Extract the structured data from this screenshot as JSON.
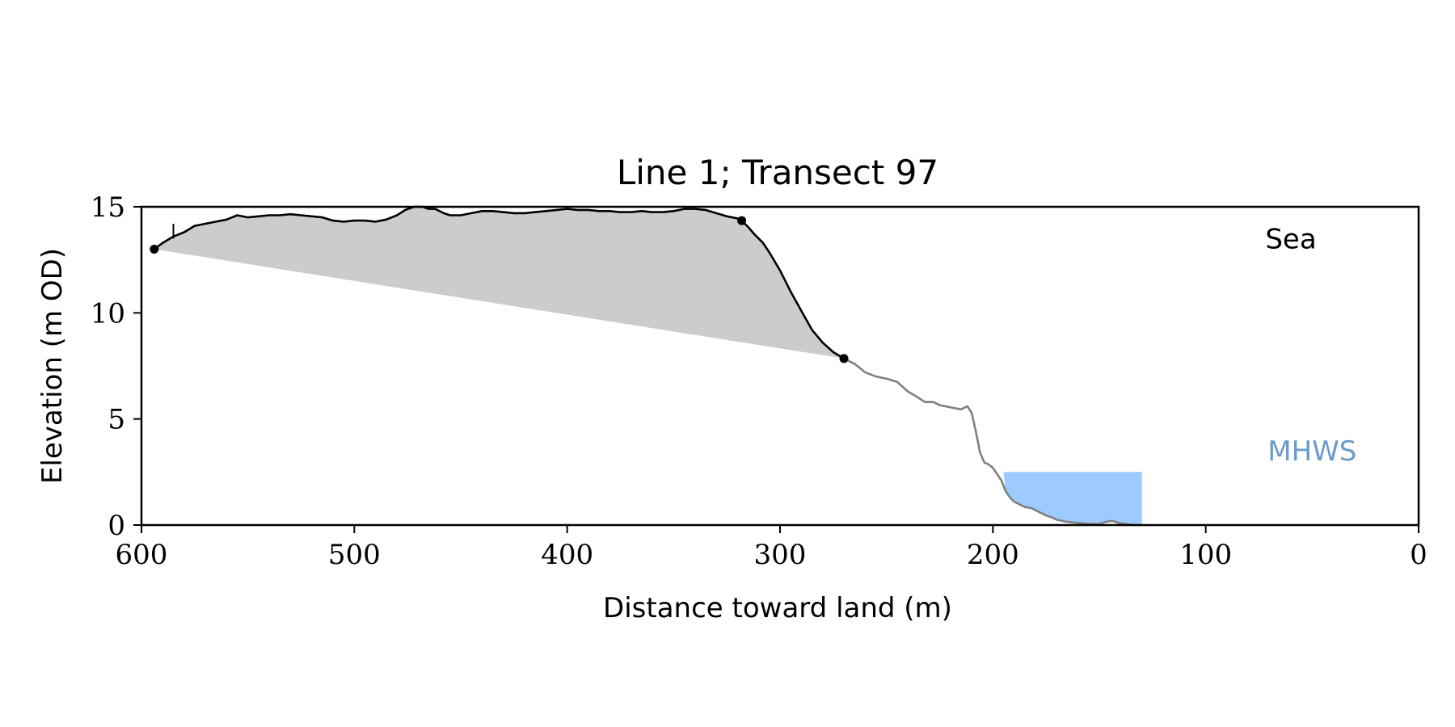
{
  "chart_data": {
    "type": "area",
    "title": "Line 1; Transect 97",
    "xlabel": "Distance toward land (m)",
    "ylabel": "Elevation (m OD)",
    "xlim": [
      600,
      0
    ],
    "ylim": [
      0,
      15
    ],
    "x_ticks": [
      "600",
      "500",
      "400",
      "300",
      "200",
      "100",
      "0"
    ],
    "x_tick_values": [
      600,
      500,
      400,
      300,
      200,
      100,
      0
    ],
    "y_ticks": [
      "0",
      "5",
      "10",
      "15"
    ],
    "y_tick_values": [
      0,
      5,
      10,
      15
    ],
    "grid": false,
    "annotations": [
      {
        "text": "Sea",
        "x": 60,
        "y": 13.5,
        "color": "#000000"
      },
      {
        "text": "MHWS",
        "x": 50,
        "y": 3.5,
        "color": "#6b9bcc"
      }
    ],
    "profile_upper": {
      "color": "#000000",
      "x": [
        594,
        590,
        585,
        580,
        575,
        570,
        565,
        560,
        555,
        550,
        545,
        540,
        535,
        530,
        525,
        520,
        515,
        510,
        505,
        500,
        495,
        490,
        485,
        480,
        476,
        472,
        468,
        465,
        462,
        458,
        455,
        450,
        445,
        440,
        435,
        430,
        425,
        420,
        415,
        410,
        405,
        400,
        395,
        390,
        385,
        380,
        375,
        370,
        365,
        360,
        355,
        350,
        345,
        340,
        335,
        330,
        325,
        320,
        318
      ],
      "y": [
        13.0,
        13.3,
        13.6,
        13.8,
        14.1,
        14.2,
        14.3,
        14.4,
        14.6,
        14.5,
        14.55,
        14.6,
        14.6,
        14.65,
        14.6,
        14.55,
        14.5,
        14.35,
        14.3,
        14.35,
        14.35,
        14.3,
        14.4,
        14.6,
        14.85,
        15.0,
        15.0,
        14.9,
        14.9,
        14.7,
        14.6,
        14.6,
        14.7,
        14.8,
        14.8,
        14.75,
        14.7,
        14.7,
        14.75,
        14.8,
        14.85,
        14.9,
        14.85,
        14.85,
        14.8,
        14.8,
        14.75,
        14.75,
        14.8,
        14.75,
        14.75,
        14.8,
        14.9,
        14.9,
        14.85,
        14.7,
        14.55,
        14.45,
        14.35
      ]
    },
    "profile_cliff": {
      "color": "#000000",
      "x": [
        318,
        315,
        312,
        308,
        305,
        300,
        295,
        290,
        285,
        280,
        275,
        270
      ],
      "y": [
        14.35,
        14.05,
        13.7,
        13.3,
        12.85,
        12.0,
        11.0,
        10.1,
        9.2,
        8.6,
        8.15,
        7.85
      ]
    },
    "profile_lower": {
      "color": "#808080",
      "x": [
        270,
        265,
        260,
        255,
        250,
        245,
        240,
        235,
        232,
        228,
        225,
        220,
        215,
        212,
        210,
        208,
        206,
        204,
        202,
        200,
        196,
        194,
        192,
        190,
        188,
        185,
        182,
        178,
        175,
        172,
        170,
        165,
        160,
        155,
        150,
        147,
        144,
        141,
        138,
        134,
        130
      ],
      "y": [
        7.85,
        7.6,
        7.2,
        7.0,
        6.9,
        6.75,
        6.3,
        6.0,
        5.8,
        5.8,
        5.65,
        5.55,
        5.45,
        5.6,
        5.3,
        4.4,
        3.4,
        2.95,
        2.85,
        2.7,
        2.1,
        1.6,
        1.3,
        1.1,
        1.0,
        0.85,
        0.8,
        0.6,
        0.45,
        0.35,
        0.25,
        0.15,
        0.1,
        0.05,
        0.05,
        0.15,
        0.2,
        0.1,
        0.05,
        0.0,
        0.0
      ]
    },
    "cross_section_fill": {
      "color": "#cccccc",
      "base_from": [
        594,
        13.0
      ],
      "base_to": [
        270,
        7.85
      ]
    },
    "water_fill": {
      "color": "#9ecbff",
      "x_range": [
        130,
        195
      ],
      "top": 2.5
    },
    "points": [
      {
        "x": 594,
        "y": 13.0
      },
      {
        "x": 318,
        "y": 14.35
      },
      {
        "x": 270,
        "y": 7.85
      }
    ],
    "marker": {
      "x": 585,
      "y_from": 13.5,
      "y_to": 14.2
    }
  }
}
